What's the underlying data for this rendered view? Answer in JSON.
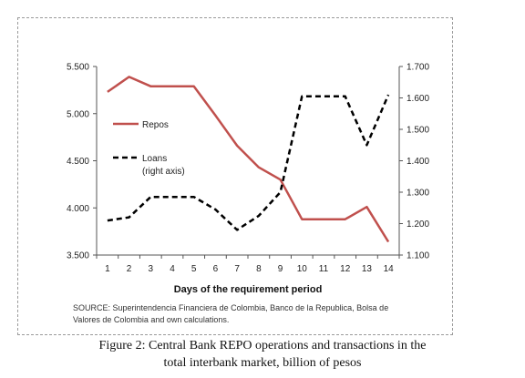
{
  "chart_data": {
    "type": "line",
    "title": "",
    "xlabel": "Days of the requirement period",
    "ylabel_left": "",
    "ylabel_right": "",
    "x": [
      1,
      2,
      3,
      4,
      5,
      6,
      7,
      8,
      9,
      10,
      11,
      12,
      13,
      14
    ],
    "y_left": {
      "range": [
        3500,
        5500
      ],
      "ticks": [
        3500,
        4000,
        4500,
        5000,
        5500
      ],
      "tick_labels": [
        "3.500",
        "4.000",
        "4.500",
        "5.000",
        "5.500"
      ]
    },
    "y_right": {
      "range": [
        1100,
        1700
      ],
      "ticks": [
        1100,
        1200,
        1300,
        1400,
        1500,
        1600,
        1700
      ],
      "tick_labels": [
        "1.100",
        "1.200",
        "1.300",
        "1.400",
        "1.500",
        "1.600",
        "1.700"
      ]
    },
    "series": [
      {
        "name": "Repos",
        "axis": "left",
        "color": "#c0504d",
        "style": "solid",
        "values": [
          5230,
          5390,
          5290,
          5290,
          5290,
          4980,
          4660,
          4430,
          4300,
          3880,
          3880,
          3880,
          4010,
          3640
        ]
      },
      {
        "name": "Loans",
        "sublabel": "(right axis)",
        "axis": "right",
        "color": "#000000",
        "style": "dashed",
        "values": [
          1210,
          1220,
          1285,
          1285,
          1285,
          1245,
          1180,
          1225,
          1300,
          1605,
          1605,
          1605,
          1450,
          1610
        ]
      }
    ],
    "legend_position": "left",
    "grid": false
  },
  "source": {
    "line1": "SOURCE: Superintendencia Financiera de Colombia, Banco de la Republica, Bolsa de",
    "line2": "Valores de Colombia and own calculations."
  },
  "caption": {
    "line1": "Figure 2:  Central Bank REPO operations and transactions in the",
    "line2": "total interbank market, billion of pesos"
  }
}
